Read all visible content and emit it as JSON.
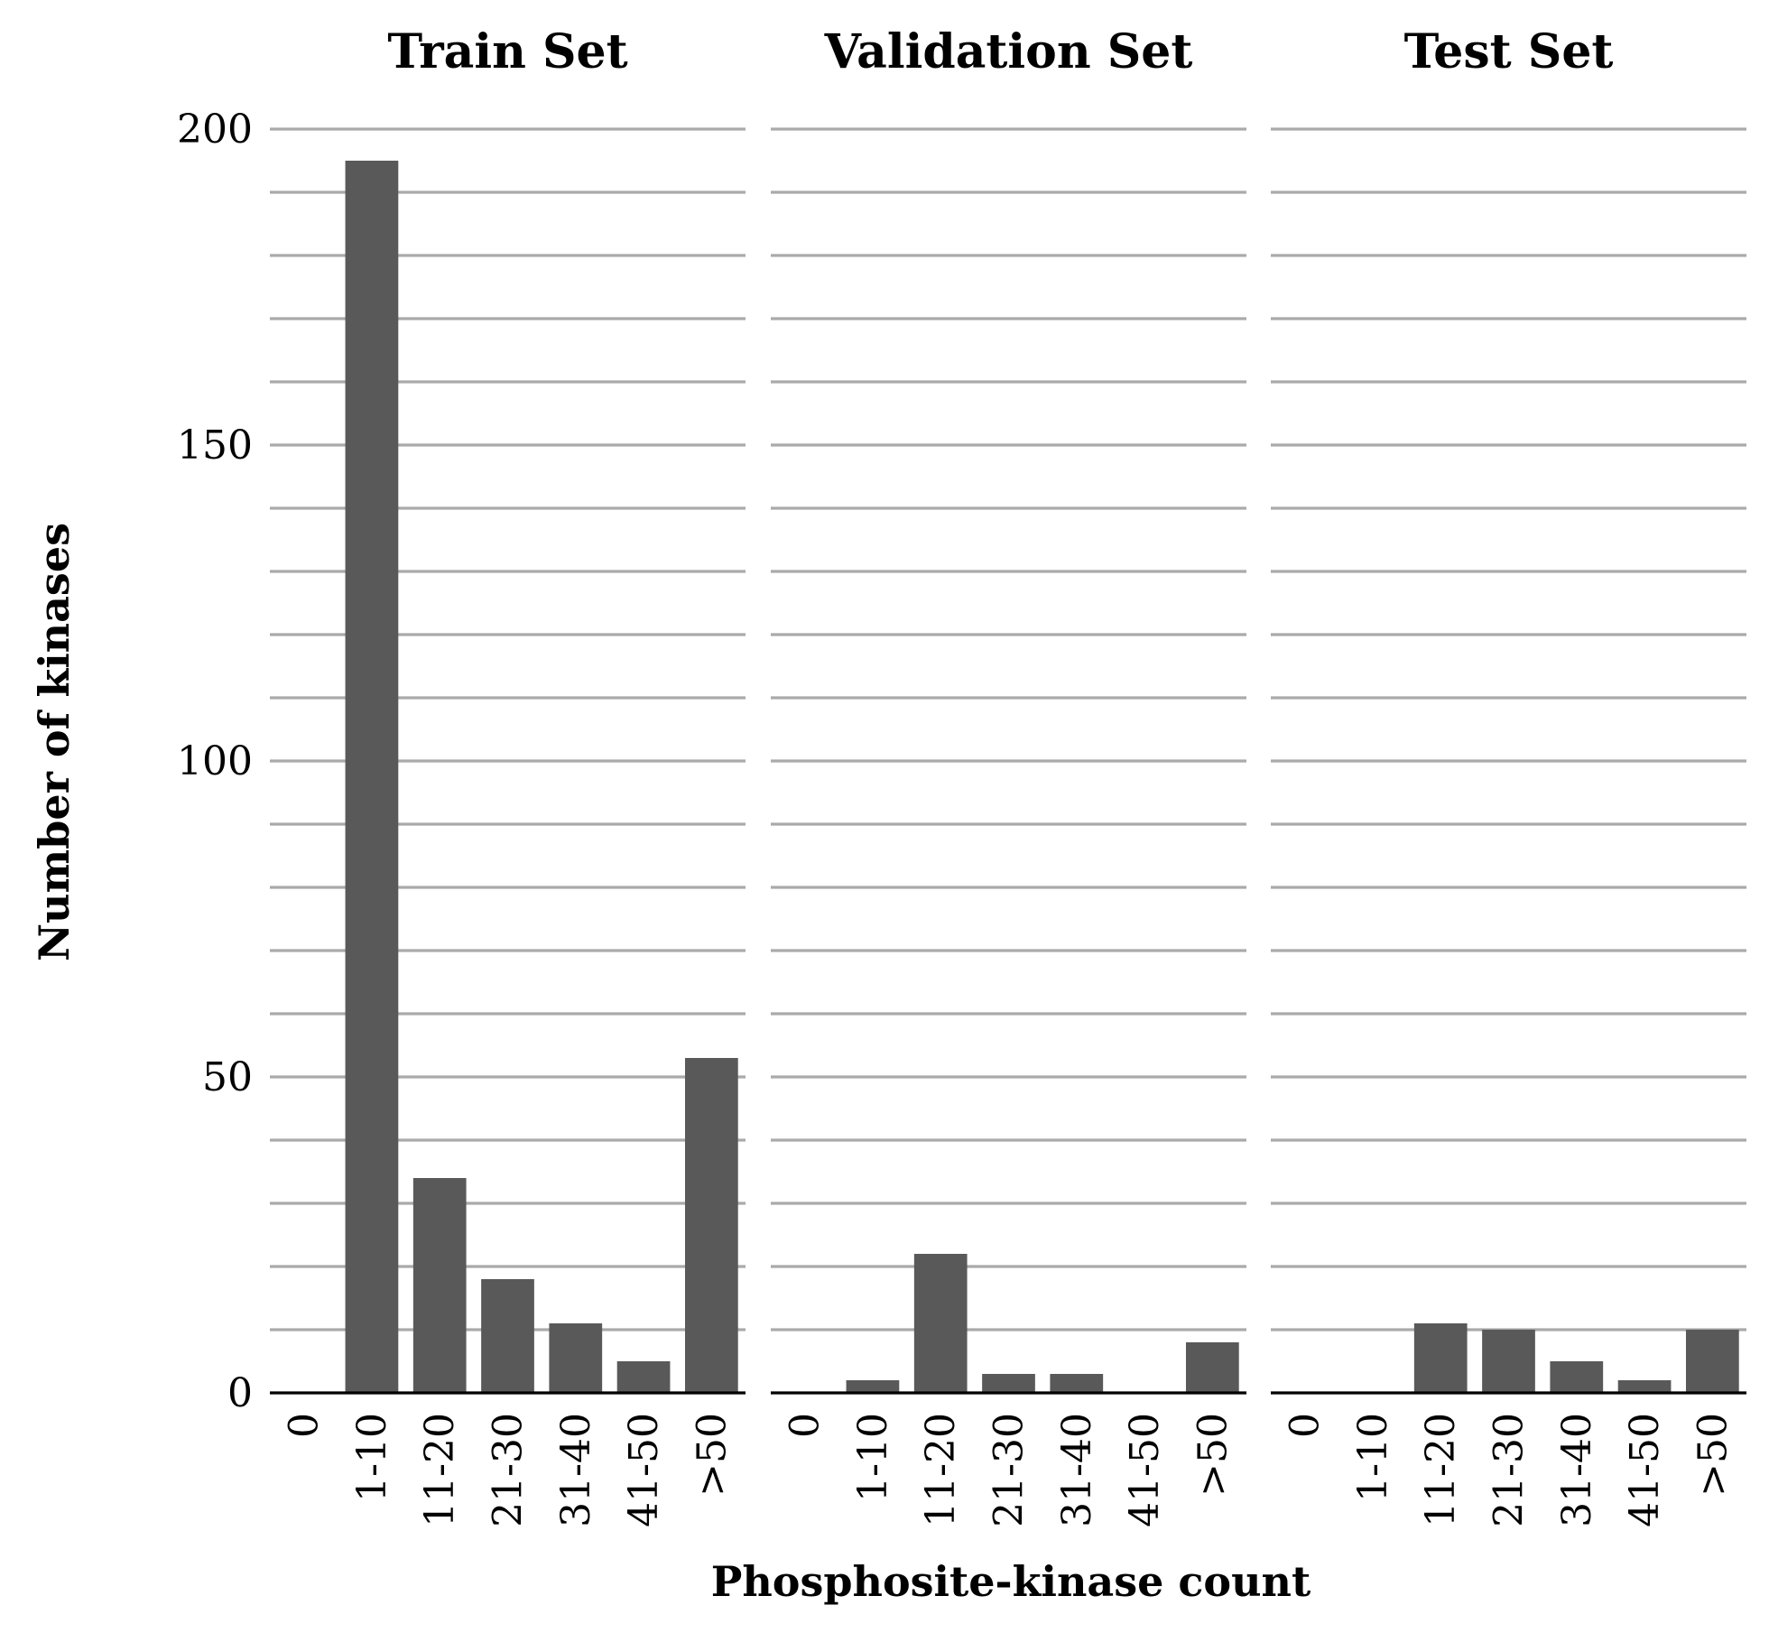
{
  "chart_data": {
    "type": "bar",
    "xlabel": "Phosphosite-kinase count",
    "ylabel": "Number of kinases",
    "categories": [
      "0",
      "1-10",
      "11-20",
      "21-30",
      "31-40",
      "41-50",
      ">50"
    ],
    "ylim": [
      0,
      200
    ],
    "yticks": [
      0,
      50,
      100,
      150,
      200
    ],
    "grid_step": 10,
    "grid": true,
    "bar_color": "#595959",
    "grid_color": "#aaaaaa",
    "panels": [
      {
        "title": "Train Set",
        "values": [
          0,
          195,
          34,
          18,
          11,
          5,
          53
        ]
      },
      {
        "title": "Validation Set",
        "values": [
          0,
          2,
          22,
          3,
          3,
          0,
          8
        ]
      },
      {
        "title": "Test Set",
        "values": [
          0,
          0,
          11,
          10,
          5,
          2,
          10
        ]
      }
    ]
  }
}
